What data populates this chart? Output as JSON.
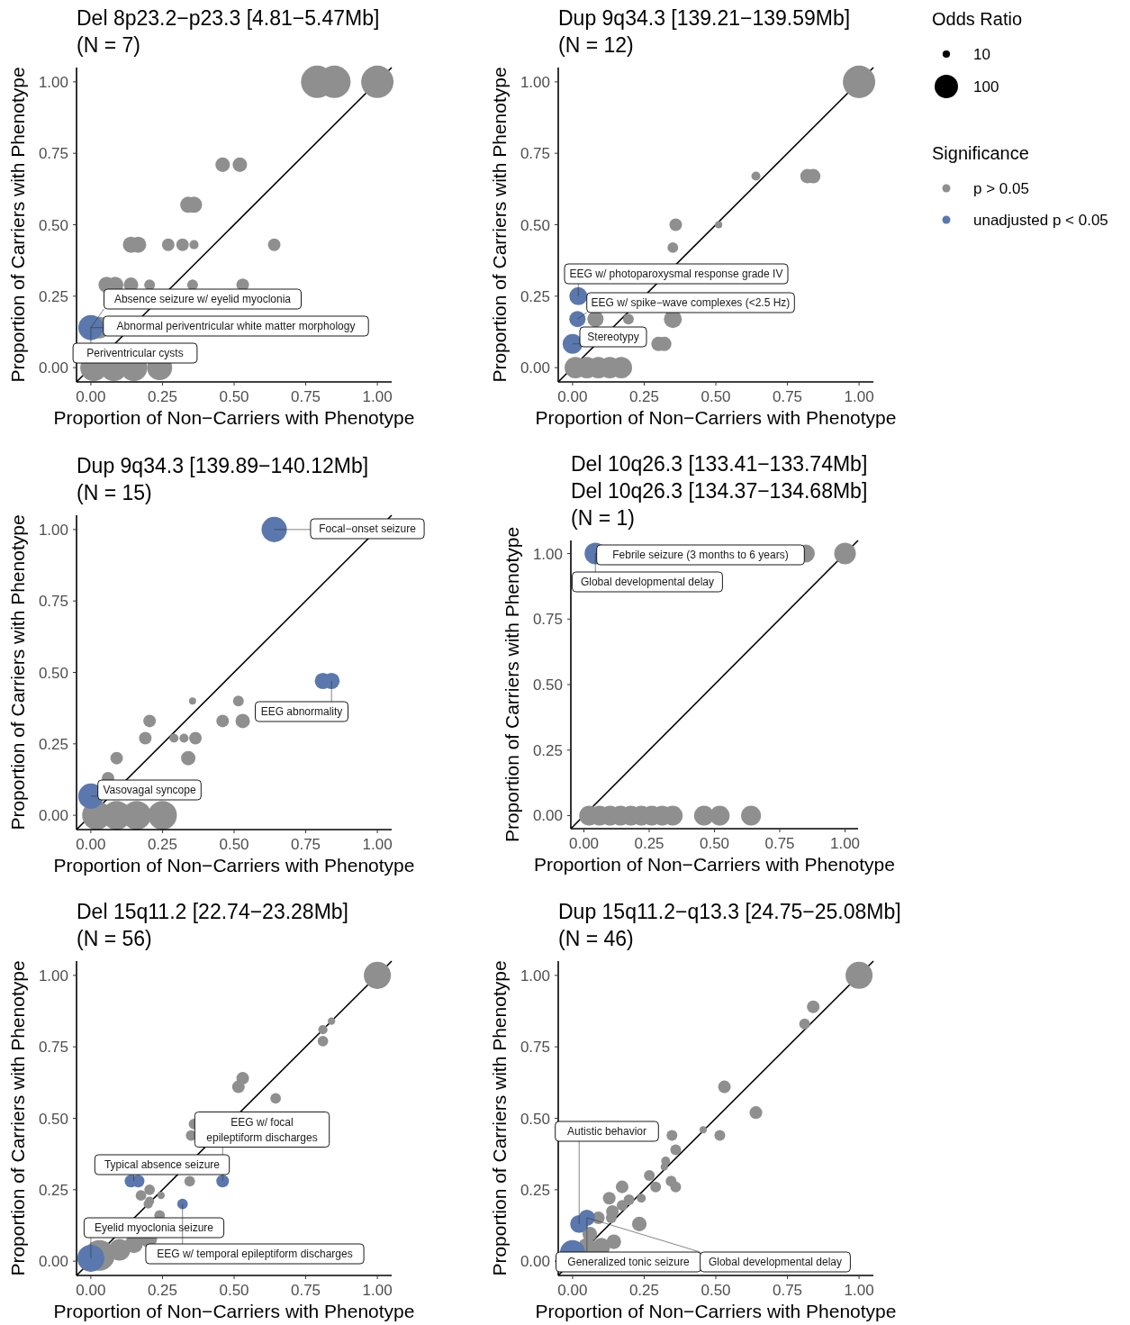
{
  "chart_data": [
    {
      "type": "bubble",
      "title": "Del 8p23.2−p23.3 [4.81−5.47Mb]",
      "subtitle": "(N = 7)",
      "xlabel": "Proportion of Non−Carriers with Phenotype",
      "ylabel": "Proportion of Carriers with Phenotype",
      "xlim": [
        -0.05,
        1.05
      ],
      "ylim": [
        -0.05,
        1.05
      ],
      "xticks": [
        {
          "value": 0,
          "label": "0.00"
        },
        {
          "value": 0.25,
          "label": "0.25"
        },
        {
          "value": 0.5,
          "label": "0.50"
        },
        {
          "value": 0.75,
          "label": "0.75"
        },
        {
          "value": 1,
          "label": "1.00"
        }
      ],
      "yticks": [
        {
          "value": 0,
          "label": "0.00"
        },
        {
          "value": 0.25,
          "label": "0.25"
        },
        {
          "value": 0.5,
          "label": "0.50"
        },
        {
          "value": 0.75,
          "label": "0.75"
        },
        {
          "value": 1,
          "label": "1.00"
        }
      ],
      "series": [
        {
          "type": "line",
          "color": "#000000",
          "x": [
            -0.05,
            1.05
          ],
          "values": [
            -0.05,
            1.05
          ]
        },
        {
          "color": "#8f8f8f",
          "x": [
            0.79,
            0.85,
            1.0,
            0.46,
            0.52,
            0.34,
            0.36,
            0.14,
            0.165,
            0.27,
            0.32,
            0.36,
            0.64,
            0.055,
            0.085,
            0.14,
            0.205,
            0.355,
            0.53,
            0.03,
            0.01,
            0.08,
            0.15,
            0.24
          ],
          "values": [
            1,
            1,
            1,
            0.71,
            0.71,
            0.57,
            0.57,
            0.43,
            0.43,
            0.43,
            0.43,
            0.43,
            0.43,
            0.29,
            0.29,
            0.29,
            0.29,
            0.29,
            0.29,
            0.14,
            0,
            0,
            0,
            0
          ],
          "sizes": [
            1,
            1,
            1,
            0.2,
            0.2,
            0.25,
            0.25,
            0.25,
            0.25,
            0.15,
            0.15,
            0.08,
            0.15,
            0.25,
            0.25,
            0.2,
            0.11,
            0.11,
            0.15,
            0.44,
            0.69,
            0.69,
            0.69,
            0.6
          ]
        },
        {
          "color": "#5a78ad",
          "x": [
            0.0
          ],
          "values": [
            0.14
          ],
          "sizes": [
            0.6
          ]
        }
      ],
      "annotations": [
        {
          "text": "Absence seizure w/ eyelid myoclonia",
          "x": 0.0,
          "y": 0.14
        },
        {
          "text": "Abnormal periventricular white matter morphology",
          "x": 0.0,
          "y": 0.14
        },
        {
          "text": "Periventricular cysts",
          "x": 0.0,
          "y": 0.14
        }
      ]
    },
    {
      "type": "bubble",
      "title": "Dup 9q34.3 [139.21−139.59Mb]",
      "subtitle": "(N = 12)",
      "xlabel": "Proportion of Non−Carriers with Phenotype",
      "ylabel": "Proportion of Carriers with Phenotype",
      "xlim": [
        -0.05,
        1.05
      ],
      "ylim": [
        -0.05,
        1.05
      ],
      "xticks": [
        {
          "value": 0,
          "label": "0.00"
        },
        {
          "value": 0.25,
          "label": "0.25"
        },
        {
          "value": 0.5,
          "label": "0.50"
        },
        {
          "value": 0.75,
          "label": "0.75"
        },
        {
          "value": 1,
          "label": "1.00"
        }
      ],
      "yticks": [
        {
          "value": 0,
          "label": "0.00"
        },
        {
          "value": 0.25,
          "label": "0.25"
        },
        {
          "value": 0.5,
          "label": "0.50"
        },
        {
          "value": 0.75,
          "label": "0.75"
        },
        {
          "value": 1,
          "label": "1.00"
        }
      ],
      "legend": "right",
      "legend_title": "Significance",
      "size_legend": [
        10,
        100
      ],
      "series": [
        {
          "type": "line",
          "color": "#000000",
          "x": [
            -0.05,
            1.05
          ],
          "values": [
            -0.05,
            1.05
          ]
        },
        {
          "name": "p > 0.05",
          "color": "#8f8f8f",
          "x": [
            1.0,
            0.64,
            0.82,
            0.84,
            0.36,
            0.51,
            0.35,
            0.08,
            0.195,
            0.35,
            0.3,
            0.32,
            0.01,
            0.05,
            0.09,
            0.13,
            0.17
          ],
          "values": [
            1,
            0.67,
            0.67,
            0.67,
            0.5,
            0.5,
            0.42,
            0.17,
            0.17,
            0.17,
            0.083,
            0.083,
            0,
            0,
            0,
            0,
            0
          ],
          "sizes": [
            192,
            15,
            38,
            38,
            29,
            9.5,
            21,
            48,
            21,
            59,
            38,
            38,
            85,
            85,
            85,
            85,
            85
          ]
        },
        {
          "name": "unadjusted p < 0.05",
          "color": "#5a78ad",
          "x": [
            0.02,
            0.017,
            0.0
          ],
          "values": [
            0.25,
            0.17,
            0.083
          ],
          "sizes": [
            59,
            48,
            72
          ]
        }
      ],
      "annotations": [
        "Odds Ratio",
        {
          "text": "EEG w/ photoparoxysmal response grade IV",
          "x": 0.02,
          "y": 0.25
        },
        {
          "text": "EEG w/ spike−wave complexes (<2.5 Hz)",
          "x": 0.017,
          "y": 0.17
        },
        {
          "text": "Stereotypy",
          "x": 0.0,
          "y": 0.083
        }
      ]
    },
    {
      "type": "bubble",
      "title": "Dup 9q34.3 [139.89−140.12Mb]",
      "subtitle": "(N = 15)",
      "xlabel": "Proportion of Non−Carriers with Phenotype",
      "ylabel": "Proportion of Carriers with Phenotype",
      "xlim": [
        -0.05,
        1.05
      ],
      "ylim": [
        -0.05,
        1.05
      ],
      "xticks": [
        {
          "value": 0,
          "label": "0.00"
        },
        {
          "value": 0.25,
          "label": "0.25"
        },
        {
          "value": 0.5,
          "label": "0.50"
        },
        {
          "value": 0.75,
          "label": "0.75"
        },
        {
          "value": 1,
          "label": "1.00"
        }
      ],
      "yticks": [
        {
          "value": 0,
          "label": "0.00"
        },
        {
          "value": 0.25,
          "label": "0.25"
        },
        {
          "value": 0.5,
          "label": "0.50"
        },
        {
          "value": 0.75,
          "label": "0.75"
        },
        {
          "value": 1,
          "label": "1.00"
        }
      ],
      "series": [
        {
          "type": "line",
          "color": "#000000",
          "x": [
            -0.05,
            1.05
          ],
          "values": [
            -0.05,
            1.05
          ]
        },
        {
          "color": "#8f8f8f",
          "x": [
            0.355,
            0.515,
            0.205,
            0.46,
            0.53,
            0.19,
            0.29,
            0.325,
            0.365,
            0.09,
            0.34,
            0.06,
            0.02,
            0.09,
            0.16,
            0.25
          ],
          "values": [
            0.4,
            0.4,
            0.33,
            0.33,
            0.33,
            0.27,
            0.27,
            0.27,
            0.27,
            0.2,
            0.2,
            0.13,
            0,
            0,
            0,
            0
          ],
          "sizes": [
            0.06,
            0.14,
            0.19,
            0.19,
            0.25,
            0.19,
            0.1,
            0.1,
            0.19,
            0.19,
            0.25,
            0.19,
            1,
            1,
            1,
            1
          ]
        },
        {
          "color": "#5a78ad",
          "x": [
            0.64,
            0.81,
            0.84,
            0.0
          ],
          "values": [
            1,
            0.47,
            0.47,
            0.067
          ],
          "sizes": [
            0.77,
            0.32,
            0.32,
            0.77
          ]
        }
      ],
      "annotations": [
        {
          "text": "Focal−onset seizure",
          "x": 0.64,
          "y": 1
        },
        {
          "text": "EEG abnormality",
          "x": 0.84,
          "y": 0.47
        },
        {
          "text": "Vasovagal syncope",
          "x": 0.0,
          "y": 0.067
        }
      ]
    },
    {
      "type": "bubble",
      "title": "Del 10q26.3 [133.41−133.74Mb]\nDel 10q26.3 [134.37−134.68Mb]",
      "subtitle": "(N = 1)",
      "xlabel": "Proportion of Non−Carriers with Phenotype",
      "ylabel": "Proportion of Carriers with Phenotype",
      "xlim": [
        -0.05,
        1.05
      ],
      "ylim": [
        -0.05,
        1.05
      ],
      "xticks": [
        {
          "value": 0,
          "label": "0.00"
        },
        {
          "value": 0.25,
          "label": "0.25"
        },
        {
          "value": 0.5,
          "label": "0.50"
        },
        {
          "value": 0.75,
          "label": "0.75"
        },
        {
          "value": 1,
          "label": "1.00"
        }
      ],
      "yticks": [
        {
          "value": 0,
          "label": "0.00"
        },
        {
          "value": 0.25,
          "label": "0.25"
        },
        {
          "value": 0.5,
          "label": "0.50"
        },
        {
          "value": 0.75,
          "label": "0.75"
        },
        {
          "value": 1,
          "label": "1.00"
        }
      ],
      "series": [
        {
          "type": "line",
          "color": "#000000",
          "x": [
            -0.05,
            1.05
          ],
          "values": [
            -0.05,
            1.05
          ]
        },
        {
          "color": "#8f8f8f",
          "x": [
            0.85,
            1.0,
            0.02,
            0.06,
            0.1,
            0.14,
            0.18,
            0.22,
            0.26,
            0.3,
            0.34,
            0.46,
            0.52,
            0.64
          ],
          "values": [
            1,
            1,
            0,
            0,
            0,
            0,
            0,
            0,
            0,
            0,
            0,
            0,
            0,
            0
          ],
          "sizes": [
            0.69,
            1,
            0.85,
            0.85,
            0.85,
            0.85,
            0.85,
            0.85,
            0.85,
            0.85,
            0.85,
            0.85,
            0.85,
            0.85
          ]
        },
        {
          "color": "#5a78ad",
          "x": [
            0.044
          ],
          "values": [
            1
          ],
          "sizes": [
            1
          ]
        }
      ],
      "annotations": [
        {
          "text": "Febrile seizure (3 months to 6 years)",
          "x": 0.044,
          "y": 1
        },
        {
          "text": "Global developmental delay",
          "x": 0.044,
          "y": 1
        }
      ]
    },
    {
      "type": "bubble",
      "title": "Del 15q11.2 [22.74−23.28Mb]",
      "subtitle": "(N = 56)",
      "xlabel": "Proportion of Non−Carriers with Phenotype",
      "ylabel": "Proportion of Carriers with Phenotype",
      "xlim": [
        -0.05,
        1.05
      ],
      "ylim": [
        -0.05,
        1.05
      ],
      "xticks": [
        {
          "value": 0,
          "label": "0.00"
        },
        {
          "value": 0.25,
          "label": "0.25"
        },
        {
          "value": 0.5,
          "label": "0.50"
        },
        {
          "value": 0.75,
          "label": "0.75"
        },
        {
          "value": 1,
          "label": "1.00"
        }
      ],
      "yticks": [
        {
          "value": 0,
          "label": "0.00"
        },
        {
          "value": 0.25,
          "label": "0.25"
        },
        {
          "value": 0.5,
          "label": "0.50"
        },
        {
          "value": 0.75,
          "label": "0.75"
        },
        {
          "value": 1,
          "label": "1.00"
        }
      ],
      "series": [
        {
          "type": "line",
          "color": "#000000",
          "x": [
            -0.05,
            1.05
          ],
          "values": [
            -0.05,
            1.05
          ]
        },
        {
          "color": "#8f8f8f",
          "x": [
            1.0,
            0.84,
            0.81,
            0.81,
            0.53,
            0.515,
            0.645,
            0.36,
            0.35,
            0.345,
            0.205,
            0.175,
            0.245,
            0.205,
            0.2,
            0.24,
            0.03,
            0.1,
            0.15,
            0.2
          ],
          "values": [
            1,
            0.84,
            0.81,
            0.77,
            0.64,
            0.61,
            0.57,
            0.48,
            0.44,
            0.28,
            0.25,
            0.23,
            0.23,
            0.21,
            0.2,
            0.16,
            0.02,
            0.04,
            0.06,
            0.08
          ],
          "sizes": [
            0.78,
            0.06,
            0.09,
            0.12,
            0.17,
            0.17,
            0.12,
            0.12,
            0.12,
            0.12,
            0.12,
            0.12,
            0.06,
            0.09,
            0.09,
            0.12,
            1,
            0.5,
            0.35,
            0.35
          ]
        },
        {
          "color": "#5a78ad",
          "x": [
            0.14,
            0.165,
            0.46,
            0.32,
            0.0
          ],
          "values": [
            0.28,
            0.28,
            0.28,
            0.2,
            0.01
          ],
          "sizes": [
            0.17,
            0.17,
            0.17,
            0.12,
            0.78
          ]
        }
      ],
      "annotations": [
        {
          "text": "EEG w/ focal\nepileptiform discharges",
          "x": 0.46,
          "y": 0.28
        },
        {
          "text": "Typical absence seizure",
          "x": 0.15,
          "y": 0.28
        },
        {
          "text": "Eyelid myoclonia seizure",
          "x": 0.0,
          "y": 0.01
        },
        {
          "text": "EEG w/ temporal epileptiform discharges",
          "x": 0.32,
          "y": 0.2
        }
      ]
    },
    {
      "type": "bubble",
      "title": "Dup 15q11.2−q13.3 [24.75−25.08Mb]",
      "subtitle": "(N = 46)",
      "xlabel": "Proportion of Non−Carriers with Phenotype",
      "ylabel": "Proportion of Carriers with Phenotype",
      "xlim": [
        -0.05,
        1.05
      ],
      "ylim": [
        -0.05,
        1.05
      ],
      "xticks": [
        {
          "value": 0,
          "label": "0.00"
        },
        {
          "value": 0.25,
          "label": "0.25"
        },
        {
          "value": 0.5,
          "label": "0.50"
        },
        {
          "value": 0.75,
          "label": "0.75"
        },
        {
          "value": 1,
          "label": "1.00"
        }
      ],
      "yticks": [
        {
          "value": 0,
          "label": "0.00"
        },
        {
          "value": 0.25,
          "label": "0.25"
        },
        {
          "value": 0.5,
          "label": "0.50"
        },
        {
          "value": 0.75,
          "label": "0.75"
        },
        {
          "value": 1,
          "label": "1.00"
        }
      ],
      "series": [
        {
          "type": "line",
          "color": "#000000",
          "x": [
            -0.05,
            1.05
          ],
          "values": [
            -0.05,
            1.05
          ]
        },
        {
          "color": "#8f8f8f",
          "x": [
            1.0,
            0.84,
            0.81,
            0.53,
            0.64,
            0.456,
            0.514,
            0.347,
            0.36,
            0.325,
            0.32,
            0.268,
            0.344,
            0.36,
            0.29,
            0.173,
            0.128,
            0.197,
            0.24,
            0.173,
            0.139,
            0.135,
            0.09,
            0.233,
            0.06,
            0.144,
            0.05,
            0.1
          ],
          "values": [
            1,
            0.89,
            0.83,
            0.61,
            0.52,
            0.46,
            0.44,
            0.44,
            0.39,
            0.35,
            0.33,
            0.3,
            0.28,
            0.26,
            0.26,
            0.26,
            0.22,
            0.215,
            0.22,
            0.195,
            0.174,
            0.152,
            0.152,
            0.13,
            0.095,
            0.068,
            0.05,
            0.05
          ],
          "sizes": [
            1,
            0.22,
            0.16,
            0.22,
            0.22,
            0.07,
            0.16,
            0.16,
            0.16,
            0.11,
            0.07,
            0.16,
            0.16,
            0.16,
            0.16,
            0.22,
            0.22,
            0.16,
            0.11,
            0.16,
            0.22,
            0.16,
            0.22,
            0.29,
            0.29,
            0.29,
            0.44,
            0.44
          ]
        },
        {
          "color": "#5a78ad",
          "x": [
            0.05,
            0.023,
            0.0
          ],
          "values": [
            0.152,
            0.13,
            0.03
          ],
          "sizes": [
            0.36,
            0.44,
            0.87
          ]
        }
      ],
      "annotations": [
        {
          "text": "Autistic behavior",
          "x": 0.023,
          "y": 0.13
        },
        {
          "text": "Generalized tonic seizure",
          "x": 0.05,
          "y": 0.152
        },
        {
          "text": "Global developmental delay",
          "x": 0.05,
          "y": 0.152
        }
      ]
    }
  ]
}
